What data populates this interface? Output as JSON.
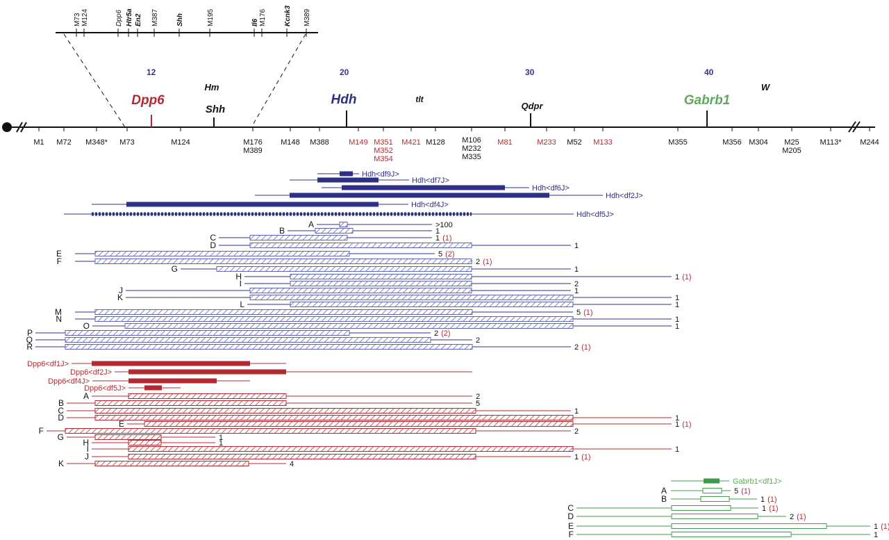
{
  "colors": {
    "black": "#111111",
    "navy": "#2e2f86",
    "blue_light": "#5d63b8",
    "red": "#b42a32",
    "green": "#3d9b48",
    "count_red": "#b42a32",
    "cm_label": "#3b3289"
  },
  "inset_map": {
    "markers": [
      "M73",
      "M124",
      "Dpp6",
      "Htr5a",
      "En2",
      "M387",
      "Shh",
      "M195",
      "Il6",
      "M176",
      "Kcnk3",
      "M389"
    ],
    "italic": [
      "Dpp6",
      "Htr5a",
      "En2",
      "Shh",
      "Il6",
      "Kcnk3"
    ]
  },
  "cm_labels": [
    "12",
    "20",
    "30",
    "40"
  ],
  "loci": {
    "dpp6": "Dpp6",
    "hm": "Hm",
    "shh": "Shh",
    "hdh": "Hdh",
    "tlt": "tlt",
    "qdpr": "Qdpr",
    "gabrb1": "Gabrb1",
    "w": "W"
  },
  "main_markers": {
    "m1": "M1",
    "m72": "M72",
    "m348": "M348*",
    "m73": "M73",
    "m124": "M124",
    "m176": "M176",
    "m389": "M389",
    "m148": "M148",
    "m388": "M388",
    "m149": "M149",
    "m351": "M351",
    "m352": "M352",
    "m354": "M354",
    "m421": "M421",
    "m128": "M128",
    "m106": "M106",
    "m232": "M232",
    "m335": "M335",
    "m81": "M81",
    "m233": "M233",
    "m52": "M52",
    "m133": "M133",
    "m355": "M355",
    "m356": "M356",
    "m304": "M304",
    "m25": "M25",
    "m205": "M205",
    "m113": "M113*",
    "m244": "M244"
  },
  "hdh_deletions": [
    {
      "name": "Hdh<df9J>"
    },
    {
      "name": "Hdh<df7J>"
    },
    {
      "name": "Hdh<df6J>"
    },
    {
      "name": "Hdh<df2J>"
    },
    {
      "name": "Hdh<df4J>"
    },
    {
      "name": "Hdh<df5J>"
    }
  ],
  "hdh_classes": [
    {
      "label": "A",
      "count": ">100",
      "extra": ""
    },
    {
      "label": "B",
      "count": "1",
      "extra": ""
    },
    {
      "label": "C",
      "count": "1",
      "extra": "(1)"
    },
    {
      "label": "D",
      "count": "1",
      "extra": ""
    },
    {
      "label": "E",
      "count": "5",
      "extra": "(2)"
    },
    {
      "label": "F",
      "count": "2",
      "extra": "(1)"
    },
    {
      "label": "G",
      "count": "1",
      "extra": ""
    },
    {
      "label": "H",
      "count": "1",
      "extra": "(1)"
    },
    {
      "label": "I",
      "count": "2",
      "extra": ""
    },
    {
      "label": "J",
      "count": "1",
      "extra": ""
    },
    {
      "label": "K",
      "count": "1",
      "extra": ""
    },
    {
      "label": "L",
      "count": "1",
      "extra": ""
    },
    {
      "label": "M",
      "count": "5",
      "extra": "(1)"
    },
    {
      "label": "N",
      "count": "1",
      "extra": ""
    },
    {
      "label": "O",
      "count": "1",
      "extra": ""
    },
    {
      "label": "P",
      "count": "2",
      "extra": "(2)"
    },
    {
      "label": "Q",
      "count": "2",
      "extra": ""
    },
    {
      "label": "R",
      "count": "2",
      "extra": "(1)"
    }
  ],
  "dpp6_deletions": [
    {
      "name": "Dpp6<df1J>"
    },
    {
      "name": "Dpp6<df2J>"
    },
    {
      "name": "Dpp6<df4J>"
    },
    {
      "name": "Dpp6<df5J>"
    }
  ],
  "dpp6_classes": [
    {
      "label": "A",
      "count": "2",
      "extra": ""
    },
    {
      "label": "B",
      "count": "5",
      "extra": ""
    },
    {
      "label": "C",
      "count": "1",
      "extra": ""
    },
    {
      "label": "D",
      "count": "1",
      "extra": ""
    },
    {
      "label": "E",
      "count": "1",
      "extra": "(1)"
    },
    {
      "label": "F",
      "count": "2",
      "extra": ""
    },
    {
      "label": "G",
      "count": "1",
      "extra": ""
    },
    {
      "label": "H",
      "count": "1",
      "extra": ""
    },
    {
      "label": "I",
      "count": "1",
      "extra": ""
    },
    {
      "label": "J",
      "count": "1",
      "extra": "(1)"
    },
    {
      "label": "K",
      "count": "4",
      "extra": ""
    }
  ],
  "gabrb1_deletions": [
    {
      "name": "Gabrb1<df1J>"
    }
  ],
  "gabrb1_classes": [
    {
      "label": "A",
      "count": "5",
      "extra": "(1)"
    },
    {
      "label": "B",
      "count": "1",
      "extra": "(1)"
    },
    {
      "label": "C",
      "count": "1",
      "extra": "(1)"
    },
    {
      "label": "D",
      "count": "2",
      "extra": "(1)"
    },
    {
      "label": "E",
      "count": "1",
      "extra": "(1)"
    },
    {
      "label": "F",
      "count": "1",
      "extra": ""
    }
  ]
}
